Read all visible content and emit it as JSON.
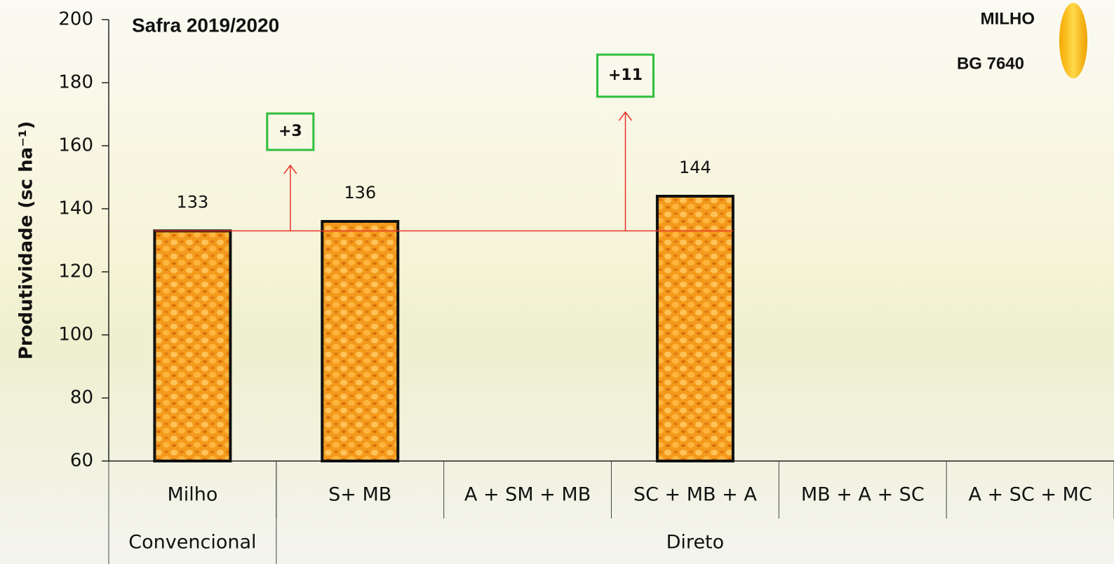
{
  "chart_data": {
    "type": "bar",
    "title": "Safra 2019/2020",
    "crop": "MILHO",
    "hybrid": "BG 7640",
    "ylabel": "Produtividade (sc ha⁻¹)",
    "categories": [
      "Milho",
      "S+ MB",
      "A + SM + MB",
      "SC + MB + A",
      "MB + A + SC",
      "A + SC + MC"
    ],
    "values": [
      133,
      136,
      null,
      144,
      null,
      null
    ],
    "groups": [
      {
        "label": "Convencional",
        "size": 1
      },
      {
        "label": "Direto",
        "size": 5
      }
    ],
    "annotations": [
      "+3",
      "+11"
    ],
    "color": "#f39a1c",
    "ylim": [
      60,
      200
    ],
    "yticks": [
      60,
      80,
      100,
      120,
      140,
      160,
      180,
      200
    ]
  }
}
